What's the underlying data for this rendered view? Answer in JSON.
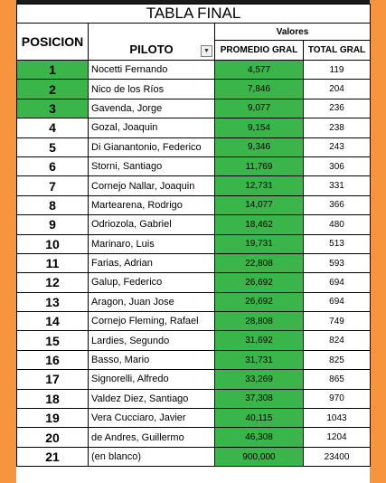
{
  "title": "TABLA FINAL",
  "headers": {
    "posicion": "POSICION",
    "piloto": "PILOTO",
    "valores": "Valores",
    "promedio": "PROMEDIO GRAL",
    "total": "TOTAL GRAL"
  },
  "icons": {
    "filter": "dropdown-arrow-icon"
  },
  "colors": {
    "highlight": "#3ab54a",
    "background": "#f7953f"
  },
  "rows": [
    {
      "pos": "1",
      "name": "Nocetti Fernando",
      "promedio": "4,577",
      "total": "119"
    },
    {
      "pos": "2",
      "name": "Nico de los Ríos",
      "promedio": "7,846",
      "total": "204"
    },
    {
      "pos": "3",
      "name": "Gavenda, Jorge",
      "promedio": "9,077",
      "total": "236"
    },
    {
      "pos": "4",
      "name": "Gozal, Joaquin",
      "promedio": "9,154",
      "total": "238"
    },
    {
      "pos": "5",
      "name": "Di Gianantonio, Federico",
      "promedio": "9,346",
      "total": "243"
    },
    {
      "pos": "6",
      "name": "Storni, Santiago",
      "promedio": "11,769",
      "total": "306"
    },
    {
      "pos": "7",
      "name": "Cornejo Nallar, Joaquin",
      "promedio": "12,731",
      "total": "331"
    },
    {
      "pos": "8",
      "name": "Martearena, Rodrigo",
      "promedio": "14,077",
      "total": "366"
    },
    {
      "pos": "9",
      "name": "Odriozola, Gabriel",
      "promedio": "18,462",
      "total": "480"
    },
    {
      "pos": "10",
      "name": "Marinaro, Luis",
      "promedio": "19,731",
      "total": "513"
    },
    {
      "pos": "11",
      "name": "Farias, Adrian",
      "promedio": "22,808",
      "total": "593"
    },
    {
      "pos": "12",
      "name": "Galup, Federico",
      "promedio": "26,692",
      "total": "694"
    },
    {
      "pos": "13",
      "name": "Aragon, Juan Jose",
      "promedio": "26,692",
      "total": "694"
    },
    {
      "pos": "14",
      "name": "Cornejo Fleming, Rafael",
      "promedio": "28,808",
      "total": "749"
    },
    {
      "pos": "15",
      "name": "Lardies, Segundo",
      "promedio": "31,692",
      "total": "824"
    },
    {
      "pos": "16",
      "name": "Basso, Mario",
      "promedio": "31,731",
      "total": "825"
    },
    {
      "pos": "17",
      "name": "Signorelli, Alfredo",
      "promedio": "33,269",
      "total": "865"
    },
    {
      "pos": "18",
      "name": "Valdez Diez, Santiago",
      "promedio": "37,308",
      "total": "970"
    },
    {
      "pos": "19",
      "name": "Vera Cucciaro, Javier",
      "promedio": "40,115",
      "total": "1043"
    },
    {
      "pos": "20",
      "name": "de Andres, Guillermo",
      "promedio": "46,308",
      "total": "1204"
    },
    {
      "pos": "21",
      "name": "(en blanco)",
      "promedio": "900,000",
      "total": "23400"
    }
  ]
}
